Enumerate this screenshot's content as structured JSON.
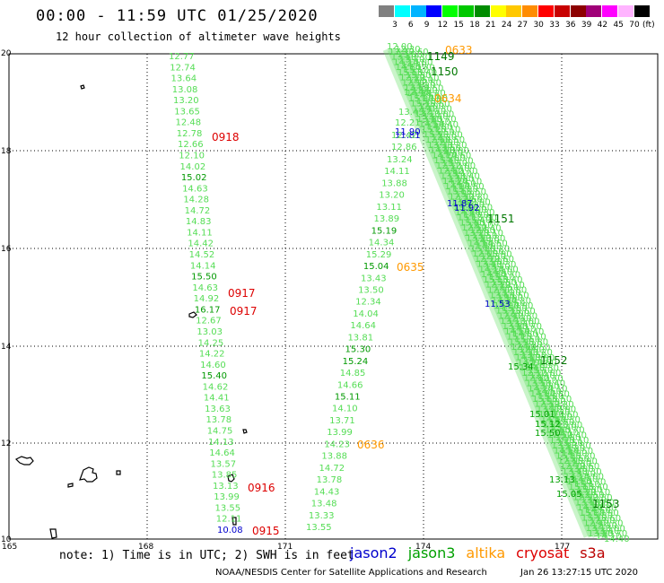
{
  "title": "00:00 - 11:59 UTC 01/25/2020",
  "subtitle": "12 hour collection of altimeter wave heights",
  "legend": {
    "unit": "(ft)",
    "items": [
      {
        "label": "3",
        "color": "#808080"
      },
      {
        "label": "6",
        "color": "#00ffff"
      },
      {
        "label": "9",
        "color": "#00b4ff"
      },
      {
        "label": "12",
        "color": "#0000ff"
      },
      {
        "label": "15",
        "color": "#00ff00"
      },
      {
        "label": "18",
        "color": "#00c800"
      },
      {
        "label": "21",
        "color": "#008c00"
      },
      {
        "label": "24",
        "color": "#ffff00"
      },
      {
        "label": "27",
        "color": "#ffc800"
      },
      {
        "label": "30",
        "color": "#ff8c00"
      },
      {
        "label": "33",
        "color": "#ff0000"
      },
      {
        "label": "36",
        "color": "#c80000"
      },
      {
        "label": "39",
        "color": "#8c0000"
      },
      {
        "label": "42",
        "color": "#a00078"
      },
      {
        "label": "45",
        "color": "#ff00ff"
      },
      {
        "label": "70",
        "color": "#ffb4ff"
      },
      {
        "label": "",
        "color": "#000000"
      }
    ]
  },
  "axes": {
    "lat_labels": [
      "20",
      "18",
      "16",
      "14",
      "12",
      "10"
    ],
    "lon_labels": [
      "165",
      "168",
      "171",
      "174",
      "177"
    ]
  },
  "tracks": {
    "track_a": [
      "12.77",
      "12.74",
      "13.64",
      "13.08",
      "13.20",
      "13.65",
      "12.48",
      "12.78",
      "12.66",
      "12.10",
      "14.02",
      "15.02",
      "14.63",
      "14.28",
      "14.72",
      "14.83",
      "14.11",
      "14.42",
      "14.52",
      "14.14",
      "15.50",
      "14.63",
      "14.92",
      "16.17",
      "12.67",
      "13.03",
      "14.25",
      "14.22",
      "14.60",
      "15.40",
      "14.62",
      "14.41",
      "13.63",
      "13.78",
      "14.75",
      "14.13",
      "14.64",
      "13.57",
      "13.85",
      "13.13",
      "13.99",
      "13.55",
      "12.11",
      "10.08"
    ],
    "track_b": [
      "13.24",
      "14.11",
      "13.88",
      "13.20",
      "13.11",
      "13.89",
      "15.19",
      "14.34",
      "15.29",
      "15.04",
      "13.43",
      "13.50",
      "12.34",
      "14.04",
      "14.64",
      "13.81",
      "15.30",
      "15.24",
      "14.85",
      "14.66",
      "15.11",
      "14.10",
      "13.71",
      "13.99",
      "14.23",
      "13.88",
      "14.72",
      "13.78",
      "14.43",
      "13.48",
      "13.33",
      "13.55"
    ],
    "track_b_top": [
      "12.46",
      "13.43",
      "12.21",
      "12.42",
      "12.86"
    ],
    "track_c_vals": [
      "11.90",
      "11.81",
      "11.87",
      "11.92",
      "11.53",
      "15.34",
      "15.01",
      "15.12",
      "15.50",
      "13.13",
      "15.05"
    ]
  },
  "time_labels": {
    "t0918": "0918",
    "t0917a": "0917",
    "t0917b": "0917",
    "t0916": "0916",
    "t0915": "0915",
    "t0633": "0633",
    "t0634": "0634",
    "t0635": "0635",
    "t0636": "0636",
    "t1149": "1149",
    "t1150": "1150",
    "t1151": "1151",
    "t1152": "1152",
    "t1153": "1153"
  },
  "note": "note: 1) Time is in UTC; 2) SWH is in feet",
  "satellites": [
    {
      "name": "jason2",
      "color": "#0000cc"
    },
    {
      "name": "jason3",
      "color": "#00a000"
    },
    {
      "name": "altika",
      "color": "#ff9900"
    },
    {
      "name": "cryosat",
      "color": "#dd0000"
    },
    {
      "name": "s3a",
      "color": "#bb0000"
    }
  ],
  "credit": "NOAA/NESDIS Center for Satellite Applications and Research",
  "timestamp": "Jan 26 13:27:15 UTC 2020"
}
